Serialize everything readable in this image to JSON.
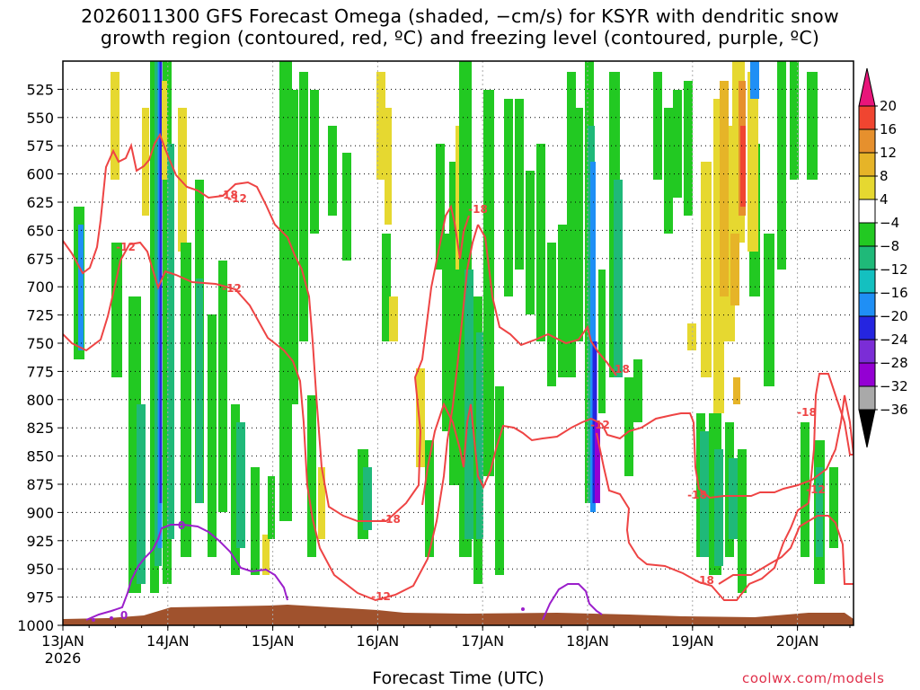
{
  "title_line1": "2026011300 GFS Forecast Omega (shaded, −cm/s) for KSYR with dendritic snow",
  "title_line2": "growth region (contoured, red, ºC) and freezing level (contoured, purple, ºC)",
  "xlabel": "Forecast Time (UTC)",
  "credit": "coolwx.com/models",
  "colors": {
    "snow_growth": "#ee4444",
    "freezing": "#9b1fcb",
    "terrain": "#a0522d",
    "grid": "#000000"
  },
  "chart_data": {
    "type": "heatmap",
    "title": "2026011300 GFS Forecast Omega (shaded, −cm/s) for KSYR with dendritic snow growth region (contoured, red, ºC) and freezing level (contoured, purple, ºC)",
    "xlabel": "Forecast Time (UTC)",
    "ylabel": "",
    "x_ticks": [
      "13JAN",
      "14JAN",
      "15JAN",
      "16JAN",
      "17JAN",
      "18JAN",
      "19JAN",
      "20JAN"
    ],
    "x_year": "2026",
    "y_ticks": [
      525,
      550,
      575,
      600,
      625,
      650,
      675,
      700,
      725,
      750,
      775,
      800,
      825,
      850,
      875,
      900,
      925,
      950,
      975,
      1000
    ],
    "y_range": [
      500,
      1000
    ],
    "x_range_hours": [
      0,
      180
    ],
    "y_axis": "pressure (hPa), inverted",
    "grid": true,
    "colorbar": {
      "levels": [
        -36,
        -32,
        -28,
        -24,
        -20,
        -16,
        -12,
        -8,
        -4,
        4,
        8,
        12,
        16,
        20
      ],
      "colors": [
        "#a9a9a9",
        "#9400d3",
        "#7b2dd6",
        "#2525e0",
        "#1f8ff5",
        "#14c0c0",
        "#1fb979",
        "#22c922",
        "#ffffff",
        "#e6d830",
        "#e6b428",
        "#e6902d",
        "#f04530",
        "#e8157a"
      ],
      "units": "-cm/s"
    },
    "contour_labels": {
      "snow_growth": [
        "-18",
        "-12",
        "-12",
        "-18",
        "-12",
        "-18",
        "-18",
        "-18",
        "-12",
        "-18",
        "-12",
        "-18",
        "-12"
      ],
      "freezing": [
        "0",
        "0"
      ]
    }
  }
}
